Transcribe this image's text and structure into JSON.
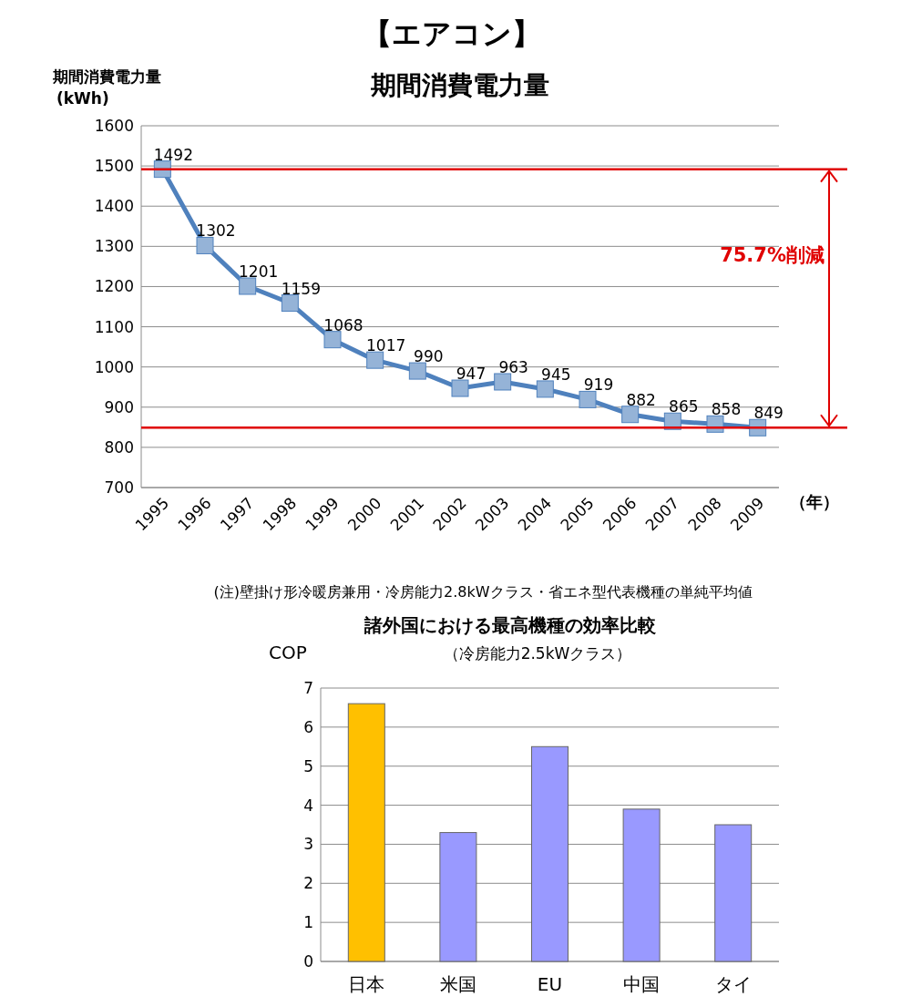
{
  "chart_data": [
    {
      "type": "line",
      "title": "期間消費電力量",
      "ylabel": "期間消費電力量\n(kWh)",
      "xlabel": "（年）",
      "categories": [
        "1995",
        "1996",
        "1997",
        "1998",
        "1999",
        "2000",
        "2001",
        "2002",
        "2003",
        "2004",
        "2005",
        "2006",
        "2007",
        "2008",
        "2009"
      ],
      "series": [
        {
          "color": "#4f81bd",
          "values": [
            1492,
            1302,
            1201,
            1159,
            1068,
            1017,
            990,
            947,
            963,
            945,
            919,
            882,
            865,
            858,
            849
          ],
          "value_labels": [
            "1492",
            "1302",
            "1201",
            "1159",
            "1068",
            "1017",
            "990",
            "947",
            "963",
            "945",
            "919",
            "882",
            "865",
            "858",
            "849"
          ]
        }
      ],
      "marker": "square",
      "ylim": [
        700,
        1600
      ],
      "yticks": [
        700,
        800,
        900,
        1000,
        1100,
        1200,
        1300,
        1400,
        1500,
        1600
      ],
      "grid": "y",
      "ref_lines": [
        {
          "axis": "y",
          "value": 1492,
          "color": "#e00000"
        },
        {
          "axis": "y",
          "value": 849,
          "color": "#e00000"
        }
      ],
      "annotations": [
        "【エアコン】",
        "75.7%削減",
        "(注)壁掛け形冷暖房兼用・冷房能力2.8kWクラス・省エネ型代表機種の単純平均値"
      ]
    },
    {
      "type": "bar",
      "title": "諸外国における最高機種の効率比較",
      "subtitle": "（冷房能力2.5kWクラス）",
      "ylabel": "COP",
      "categories": [
        "日本",
        "米国",
        "EU",
        "中国",
        "タイ"
      ],
      "values": [
        6.6,
        3.3,
        5.5,
        3.9,
        3.5
      ],
      "colors": [
        "#ffc000",
        "#9999ff",
        "#9999ff",
        "#9999ff",
        "#9999ff"
      ],
      "ylim": [
        0,
        7
      ],
      "yticks": [
        0,
        1,
        2,
        3,
        4,
        5,
        6,
        7
      ],
      "grid": "y"
    }
  ]
}
